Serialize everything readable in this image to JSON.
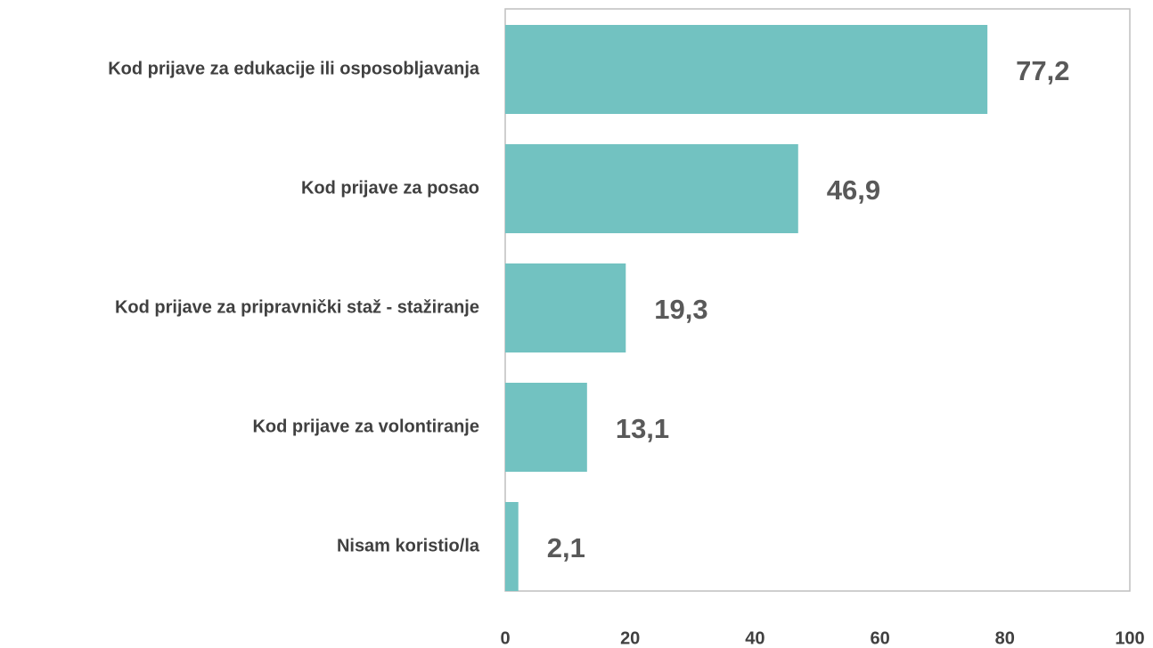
{
  "chart_data": {
    "type": "bar",
    "orientation": "horizontal",
    "categories": [
      "Kod prijave za edukacije ili osposobljavanja",
      "Kod prijave za posao",
      "Kod prijave za pripravnički staž - stažiranje",
      "Kod prijave za volontiranje",
      "Nisam koristio/la"
    ],
    "values": [
      77.2,
      46.9,
      19.3,
      13.1,
      2.1
    ],
    "value_labels": [
      "77,2",
      "46,9",
      "19,3",
      "13,1",
      "2,1"
    ],
    "color": "#72c2c1",
    "xlim": [
      0,
      100
    ],
    "xticks": [
      0,
      20,
      40,
      60,
      80,
      100
    ],
    "grid": false
  }
}
